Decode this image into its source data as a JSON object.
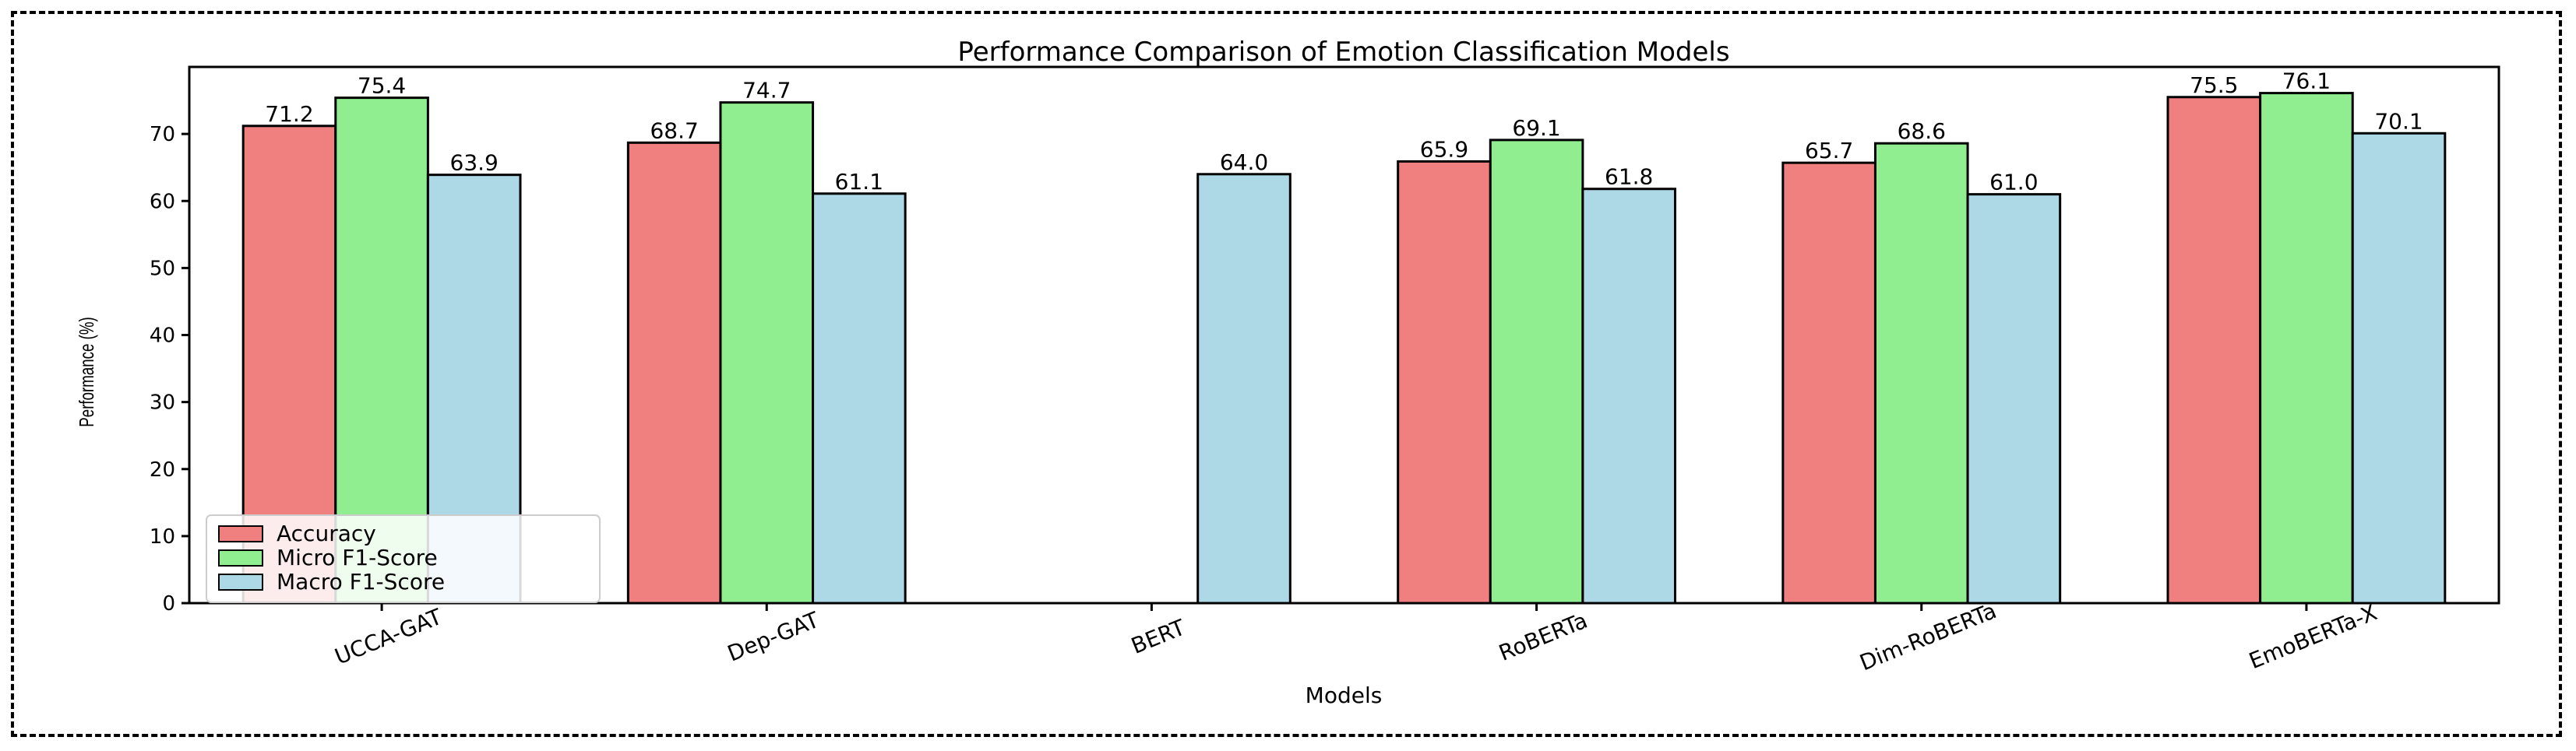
{
  "chart_data": {
    "type": "bar",
    "title": "Performance Comparison of Emotion Classification Models",
    "xlabel": "Models",
    "ylabel": "Performance (%)",
    "categories": [
      "UCCA-GAT",
      "Dep-GAT",
      "BERT",
      "RoBERTa",
      "Dim-RoBERTa",
      "EmoBERTa-X"
    ],
    "series": [
      {
        "name": "Accuracy",
        "color": "#f08080",
        "values": [
          71.2,
          68.7,
          null,
          65.9,
          65.7,
          75.5
        ]
      },
      {
        "name": "Micro F1-Score",
        "color": "#90ee90",
        "values": [
          75.4,
          74.7,
          null,
          69.1,
          68.6,
          76.1
        ]
      },
      {
        "name": "Macro F1-Score",
        "color": "#add8e6",
        "values": [
          63.9,
          61.1,
          64.0,
          61.8,
          61.0,
          70.1
        ]
      }
    ],
    "ylim": [
      0,
      80
    ],
    "yticks": [
      0,
      10,
      20,
      30,
      40,
      50,
      60,
      70
    ],
    "grid": false,
    "legend_position": "lower-left"
  }
}
